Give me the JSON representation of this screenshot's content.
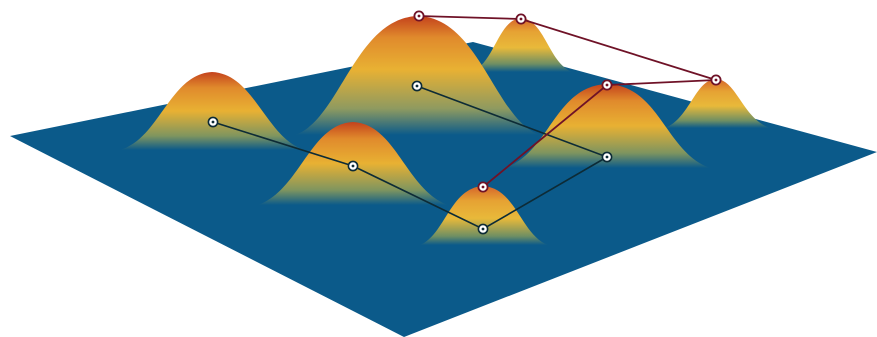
{
  "colors": {
    "background": "#ffffff",
    "plane": "#0b5a8a",
    "peak_hot": "#c4421c",
    "peak_warm": "#e8b133",
    "peak_cool": "#0b5a8a",
    "base_path": "#0d2b36",
    "top_path": "#6f1227",
    "marker_fill": "#ffffff"
  },
  "icons": {
    "base_marker": "dot-in-circle-icon",
    "top_marker": "dot-in-circle-icon"
  }
}
